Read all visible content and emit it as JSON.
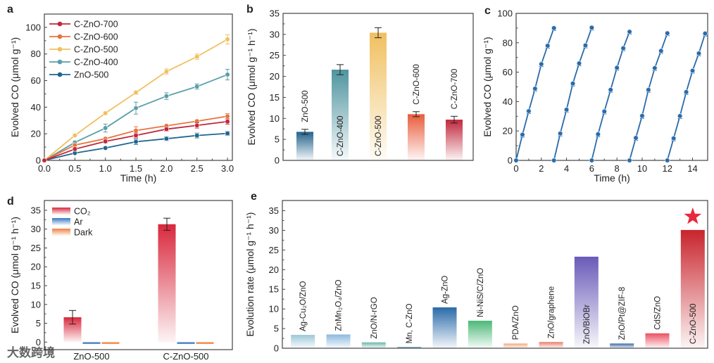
{
  "panel_labels": [
    "a",
    "b",
    "c",
    "d",
    "e"
  ],
  "watermark": "大数跨境",
  "chart_data": [
    {
      "panel": "a",
      "type": "line",
      "xlabel": "Time (h)",
      "ylabel": "Evolved CO (μmol g⁻¹)",
      "xlim": [
        0,
        3.08
      ],
      "ylim": [
        0,
        110
      ],
      "xticks": [
        "0.0",
        "0.5",
        "1.0",
        "1.5",
        "2.0",
        "2.5",
        "3.0"
      ],
      "yticks": [
        "0",
        "20",
        "40",
        "60",
        "80",
        "100"
      ],
      "legend_position": "top-left",
      "x": [
        0,
        0.5,
        1.0,
        1.5,
        2.0,
        2.5,
        3.0
      ],
      "series": [
        {
          "name": "C-ZnO-700",
          "color": "#c0283c",
          "values": [
            0,
            8.5,
            14.3,
            18.8,
            23.5,
            26.3,
            29.2
          ],
          "err": [
            0,
            1.2,
            1.2,
            1.8,
            1.5,
            2.0,
            2.0
          ]
        },
        {
          "name": "C-ZnO-600",
          "color": "#e8743c",
          "values": [
            0,
            11.5,
            16.3,
            22.5,
            26.0,
            29.5,
            33.2
          ],
          "err": [
            0,
            1.0,
            1.0,
            2.8,
            1.0,
            1.0,
            2.0
          ]
        },
        {
          "name": "C-ZnO-500",
          "color": "#f0c060",
          "values": [
            0,
            18.8,
            35.5,
            51.0,
            66.8,
            78.0,
            91.0
          ],
          "err": [
            0,
            1.0,
            1.2,
            1.5,
            2.0,
            2.0,
            3.5
          ]
        },
        {
          "name": "C-ZnO-400",
          "color": "#5a9ea8",
          "values": [
            0,
            13.5,
            24.3,
            39.3,
            48.3,
            55.5,
            64.5
          ],
          "err": [
            0,
            1.0,
            3.0,
            4.5,
            2.5,
            2.0,
            4.0
          ]
        },
        {
          "name": "ZnO-500",
          "color": "#1e6690",
          "values": [
            0,
            5.5,
            9.3,
            14.0,
            16.3,
            18.7,
            20.3
          ],
          "err": [
            0,
            0.8,
            1.0,
            2.0,
            1.5,
            1.8,
            1.5
          ]
        }
      ]
    },
    {
      "panel": "b",
      "type": "bar",
      "xlabel": "",
      "ylabel": "Evolved CO (μmol g⁻¹ h⁻¹)",
      "ylim": [
        0,
        35
      ],
      "yticks": [
        "0",
        "5",
        "10",
        "15",
        "20",
        "25",
        "30",
        "35"
      ],
      "categories": [
        "ZnO-500",
        "C-ZnO-400",
        "C-ZnO-500",
        "C-ZnO-600",
        "C-ZnO-700"
      ],
      "values": [
        6.8,
        21.6,
        30.4,
        11.0,
        9.7
      ],
      "err": [
        0.6,
        1.2,
        1.2,
        0.6,
        0.8
      ],
      "colors": [
        "#23628c",
        "#4f94a0",
        "#f0c060",
        "#e85c3c",
        "#c0283c"
      ]
    },
    {
      "panel": "c",
      "type": "line",
      "xlabel": "Time (h)",
      "ylabel": "Evolved CO (μmol g⁻¹)",
      "xlim": [
        0,
        15.2
      ],
      "ylim": [
        0,
        100
      ],
      "xticks": [
        "0",
        "2",
        "4",
        "6",
        "8",
        "10",
        "12",
        "14"
      ],
      "yticks": [
        "0",
        "20",
        "40",
        "60",
        "80",
        "100"
      ],
      "color": "#2a6aa8",
      "cycles": [
        {
          "x": [
            0,
            0.5,
            1,
            1.5,
            2,
            2.5,
            3
          ],
          "values": [
            0,
            17.5,
            33.5,
            48.8,
            65.5,
            78.0,
            90.0
          ]
        },
        {
          "x": [
            3,
            3.5,
            4,
            4.5,
            5,
            5.5,
            6
          ],
          "values": [
            0,
            18.3,
            34.5,
            52.3,
            66.0,
            78.2,
            90.3
          ]
        },
        {
          "x": [
            6,
            6.5,
            7,
            7.5,
            8,
            8.5,
            9
          ],
          "values": [
            0,
            17.8,
            33.3,
            48.0,
            63.0,
            76.3,
            87.5
          ]
        },
        {
          "x": [
            9,
            9.5,
            10,
            10.5,
            11,
            11.5,
            12
          ],
          "values": [
            0,
            15.3,
            30.3,
            48.0,
            62.8,
            74.5,
            86.5
          ]
        },
        {
          "x": [
            12,
            12.5,
            13,
            13.5,
            14,
            14.5,
            15
          ],
          "values": [
            0,
            15.0,
            30.2,
            46.5,
            61.0,
            72.8,
            86.3
          ]
        }
      ]
    },
    {
      "panel": "d",
      "type": "bar",
      "xlabel": "",
      "ylabel": "Evolved CO (μmol g⁻¹ h⁻¹)",
      "ylim": [
        -2,
        37.6
      ],
      "yticks": [
        "0",
        "5",
        "10",
        "15",
        "20",
        "25",
        "30",
        "35"
      ],
      "categories": [
        "ZnO-500",
        "C-ZnO-500"
      ],
      "legend_position": "top-left",
      "series": [
        {
          "name": "CO₂",
          "color": "#d8283c",
          "values": [
            6.6,
            31.3
          ],
          "err": [
            1.8,
            1.6
          ]
        },
        {
          "name": "Ar",
          "color": "#3a78c0",
          "values": [
            -0.5,
            -0.5
          ],
          "err": [
            0,
            0
          ]
        },
        {
          "name": "Dark",
          "color": "#f08040",
          "values": [
            -0.5,
            -0.5
          ],
          "err": [
            0,
            0
          ]
        }
      ]
    },
    {
      "panel": "e",
      "type": "bar",
      "xlabel": "",
      "ylabel": "Evolution rate (μmol  g⁻¹ h⁻¹)",
      "ylim": [
        0,
        37.6
      ],
      "yticks": [
        "0",
        "5",
        "10",
        "15",
        "20",
        "25",
        "30",
        "35"
      ],
      "categories": [
        "Ag-Cu₂O/ZnO",
        "ZnMn₂O₄/ZnO",
        "ZnO/N-rGO",
        "Mn, C-ZnO",
        "Ag-ZnO",
        "Ni-NiS/C/ZnO",
        "PDA/ZnO",
        "ZnO/graphene",
        "ZnO/BiOBr",
        "ZnO/Pt@ZIF-8",
        "CdS/ZnO",
        "C-ZnO-500"
      ],
      "values": [
        3.4,
        3.5,
        1.5,
        0.3,
        10.4,
        7.0,
        1.2,
        1.6,
        23.3,
        1.2,
        3.8,
        30.1
      ],
      "colors": [
        "#9cc8d8",
        "#8ab8e0",
        "#6cb8a8",
        "#2a6a8a",
        "#2a6aa8",
        "#4cb878",
        "#f4a880",
        "#ec8070",
        "#6a5ab8",
        "#3a68a8",
        "#ec5060",
        "#c8242c"
      ],
      "highlight": "C-ZnO-500",
      "highlight_marker": "star",
      "highlight_color": "#e8283c"
    }
  ]
}
